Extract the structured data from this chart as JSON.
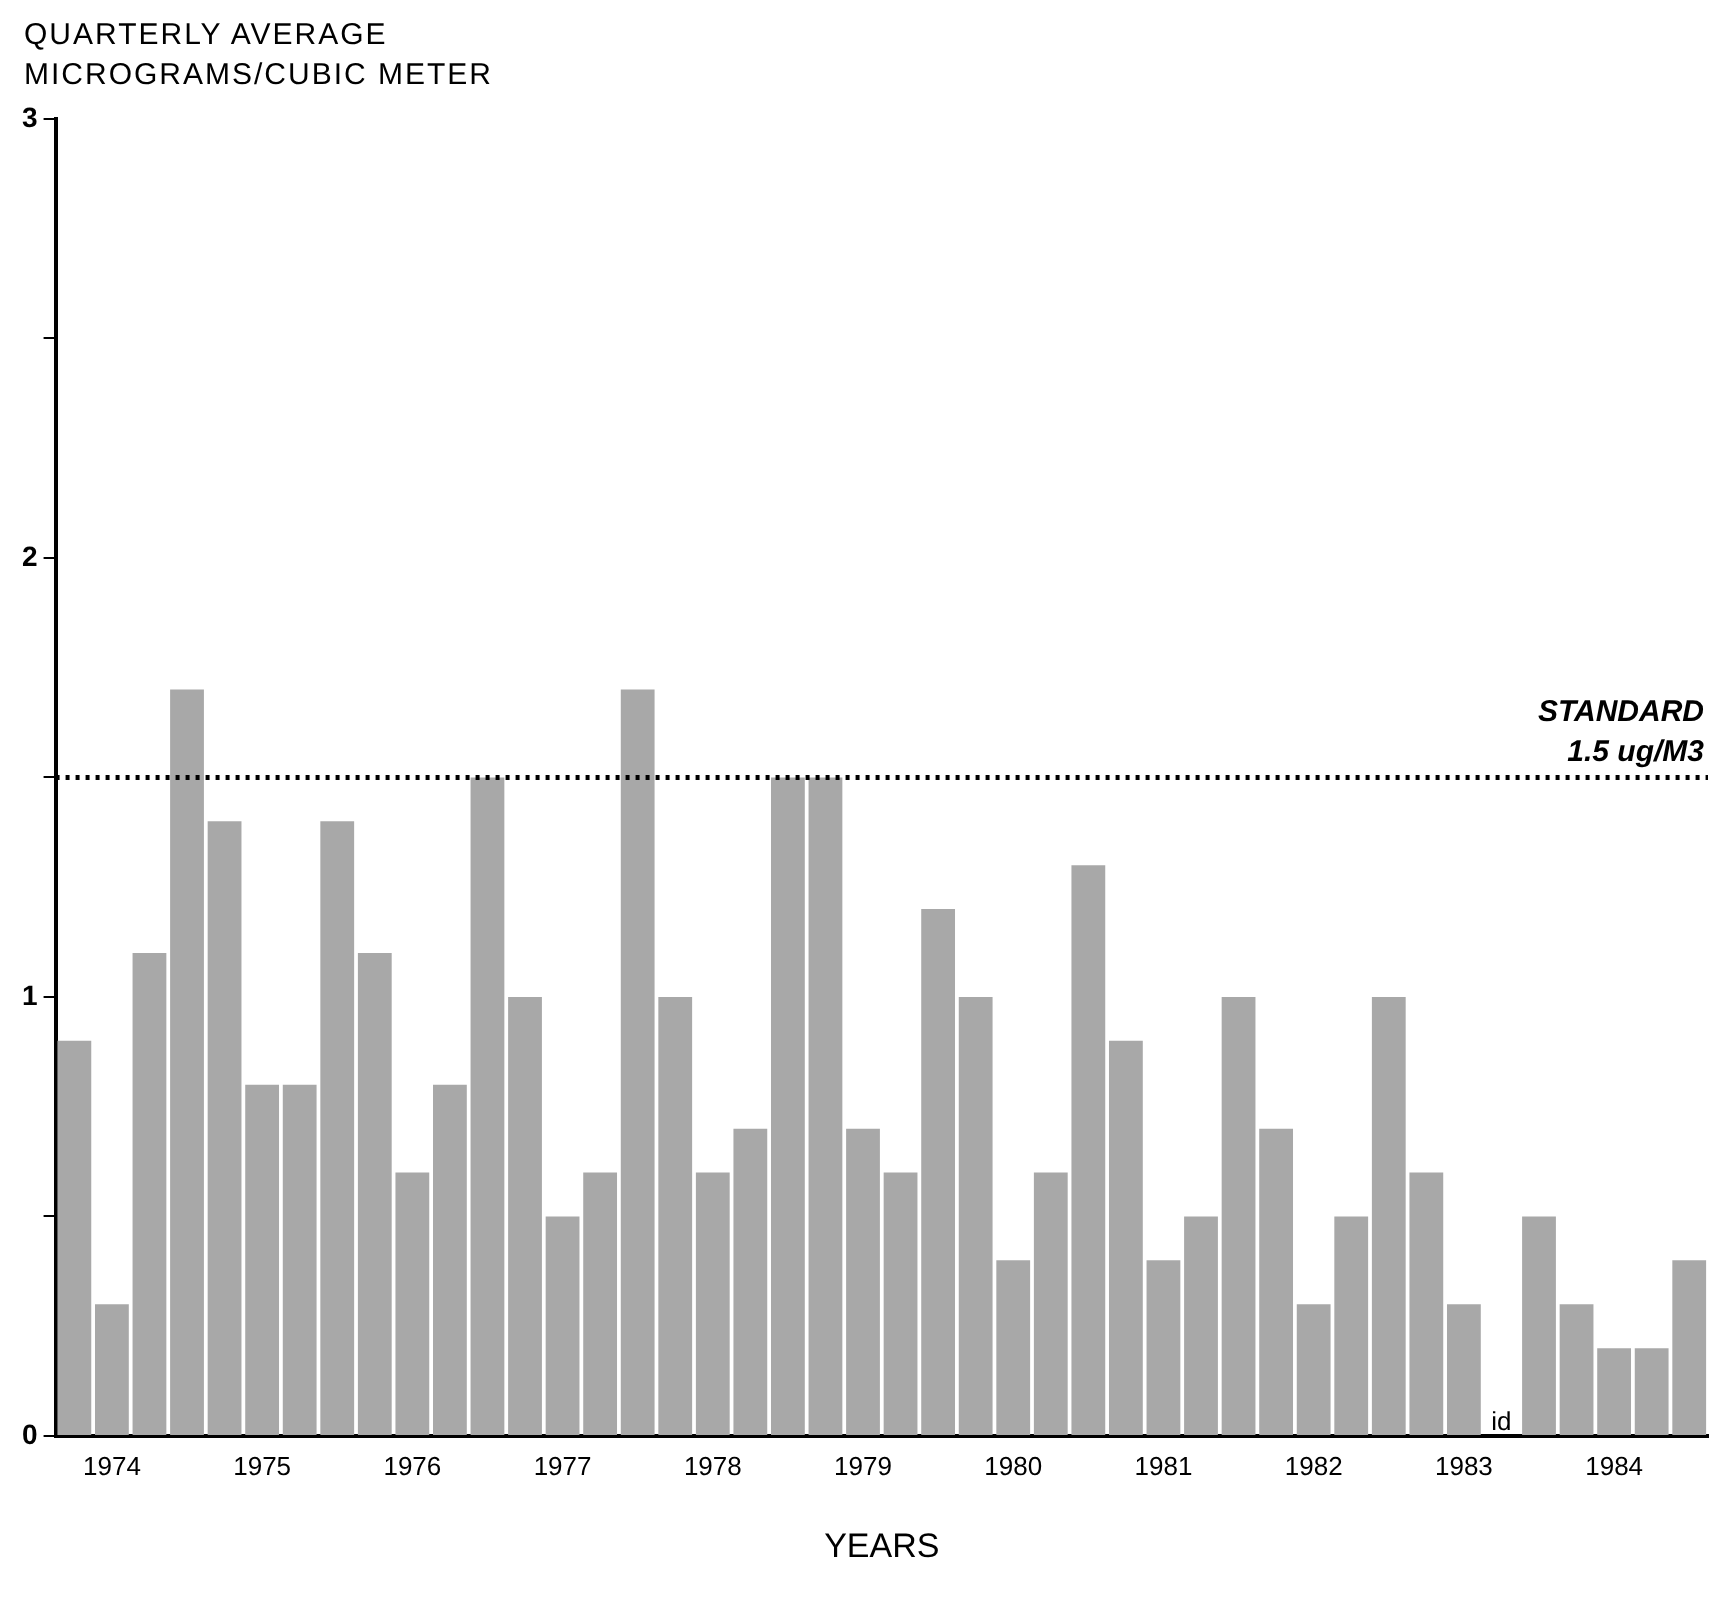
{
  "chart_data": {
    "type": "bar",
    "ylabel": "QUARTERLY AVERAGE MICROGRAMS/CUBIC METER",
    "xlabel": "YEARS",
    "categories": [
      null,
      "1974",
      null,
      null,
      null,
      "1975",
      null,
      null,
      null,
      "1976",
      null,
      null,
      null,
      "1977",
      null,
      null,
      null,
      "1978",
      null,
      null,
      null,
      "1979",
      null,
      null,
      null,
      "1980",
      null,
      null,
      null,
      "1981",
      null,
      null,
      null,
      "1982",
      null,
      null,
      null,
      "1983",
      null,
      null,
      null,
      "1984",
      null,
      null
    ],
    "series": [
      {
        "color": "#a8a8a8",
        "values": [
          0.9,
          0.3,
          1.1,
          1.7,
          1.4,
          0.8,
          0.8,
          1.4,
          1.1,
          0.6,
          0.8,
          1.5,
          1.0,
          0.5,
          0.6,
          1.7,
          1.0,
          0.6,
          0.7,
          1.5,
          1.5,
          0.7,
          0.6,
          1.2,
          1.0,
          0.4,
          0.6,
          1.3,
          0.9,
          0.4,
          0.5,
          1.0,
          0.7,
          0.3,
          0.5,
          1.0,
          0.6,
          0.3,
          null,
          0.5,
          0.3,
          0.2,
          0.2,
          0.4
        ]
      }
    ],
    "ylim": [
      0,
      3
    ],
    "yticks": [
      0,
      {
        "value": 0.5,
        "label": null
      },
      1,
      {
        "value": 1.5,
        "label": null
      },
      2,
      {
        "value": 2.5,
        "label": null
      },
      3
    ],
    "ref_lines": [
      {
        "axis": "y",
        "value": 1.5,
        "label": "STANDARD 1.5 ug/M3",
        "line_style": "dotted",
        "color": "#000000"
      }
    ],
    "annotations": [
      "id"
    ],
    "grid": false,
    "legend": false
  }
}
